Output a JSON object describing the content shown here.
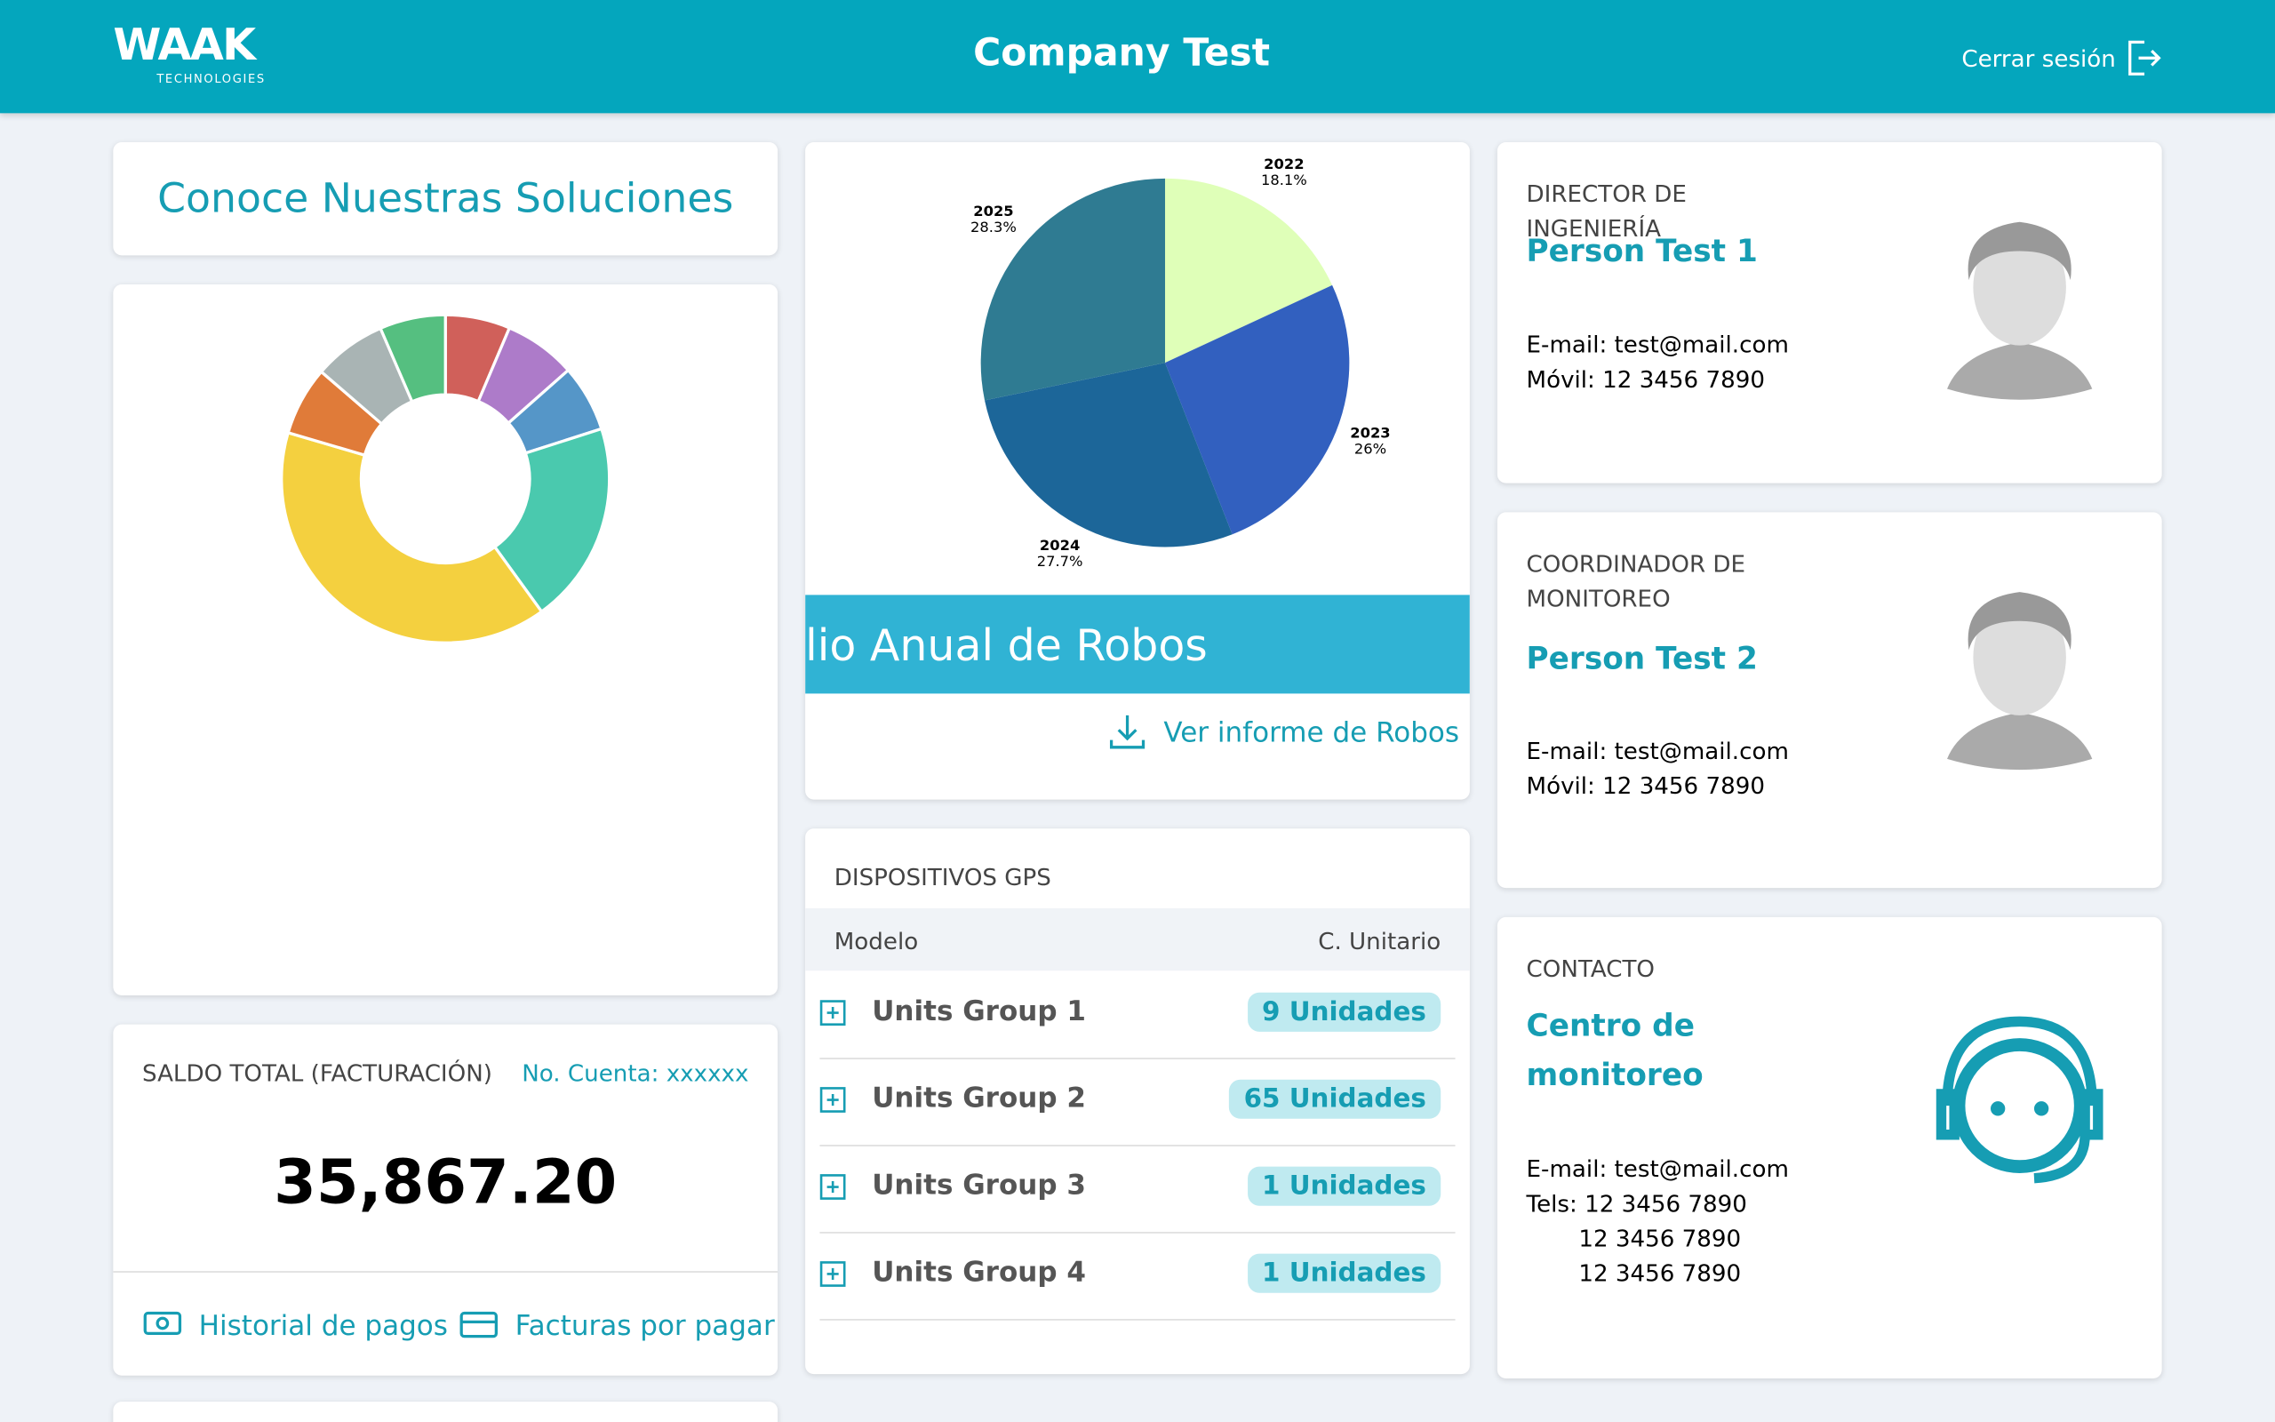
{
  "header": {
    "logo": "WAAK",
    "logo_sub": "TECHNOLOGIES",
    "title": "Company Test",
    "logout": "Cerrar sesión"
  },
  "solutions": {
    "title": "Conoce Nuestras Soluciones"
  },
  "chart_data": [
    {
      "type": "donut",
      "values": [
        6.4,
        7.1,
        6.6,
        20,
        39.6,
        6.8,
        7.2,
        6.5
      ],
      "colors": [
        "#d0605a",
        "#ad7bc9",
        "#5596c8",
        "#4ac9ae",
        "#f4d03f",
        "#e07b39",
        "#a9b4b4",
        "#55bf80"
      ]
    },
    {
      "type": "pie",
      "categories": [
        "2022",
        "2023",
        "2024",
        "2025"
      ],
      "values": [
        18.1,
        26,
        27.7,
        28.3
      ],
      "value_labels": [
        "18.1%",
        "26%",
        "27.7%",
        "28.3%"
      ],
      "colors": [
        "#dfffb8",
        "#3260bf",
        "#1c6699",
        "#2f7b92"
      ]
    }
  ],
  "report": {
    "banner": "lio Anual de Robos",
    "link": "Ver informe de Robos"
  },
  "balance": {
    "title": "SALDO TOTAL (FACTURACIÓN)",
    "account": "No. Cuenta: xxxxxx",
    "amount": "35,867.20",
    "history": "Historial de pagos",
    "invoices": "Facturas por pagar"
  },
  "gps": {
    "title": "DISPOSITIVOS GPS",
    "columns": [
      "Modelo",
      "C. Unitario"
    ],
    "rows": [
      [
        "Units Group 1",
        "9 Unidades"
      ],
      [
        "Units Group 2",
        "65 Unidades"
      ],
      [
        "Units Group 3",
        "1 Unidades"
      ],
      [
        "Units Group 4",
        "1 Unidades"
      ]
    ]
  },
  "contacts": [
    {
      "role": "DIRECTOR DE INGENIERÍA",
      "name": "Person Test 1",
      "email": "E-mail: test@mail.com",
      "phones": [
        "Móvil: 12 3456 7890"
      ]
    },
    {
      "role": "COORDINADOR DE MONITOREO",
      "name": "Person Test 2",
      "email": "E-mail: test@mail.com",
      "phones": [
        "Móvil: 12 3456 7890"
      ]
    },
    {
      "role": "CONTACTO",
      "name": "Centro de monitoreo",
      "email": "E-mail: test@mail.com",
      "phones": [
        "Tels: 12 3456 7890",
        "12 3456 7890",
        "12 3456 7890"
      ]
    }
  ]
}
